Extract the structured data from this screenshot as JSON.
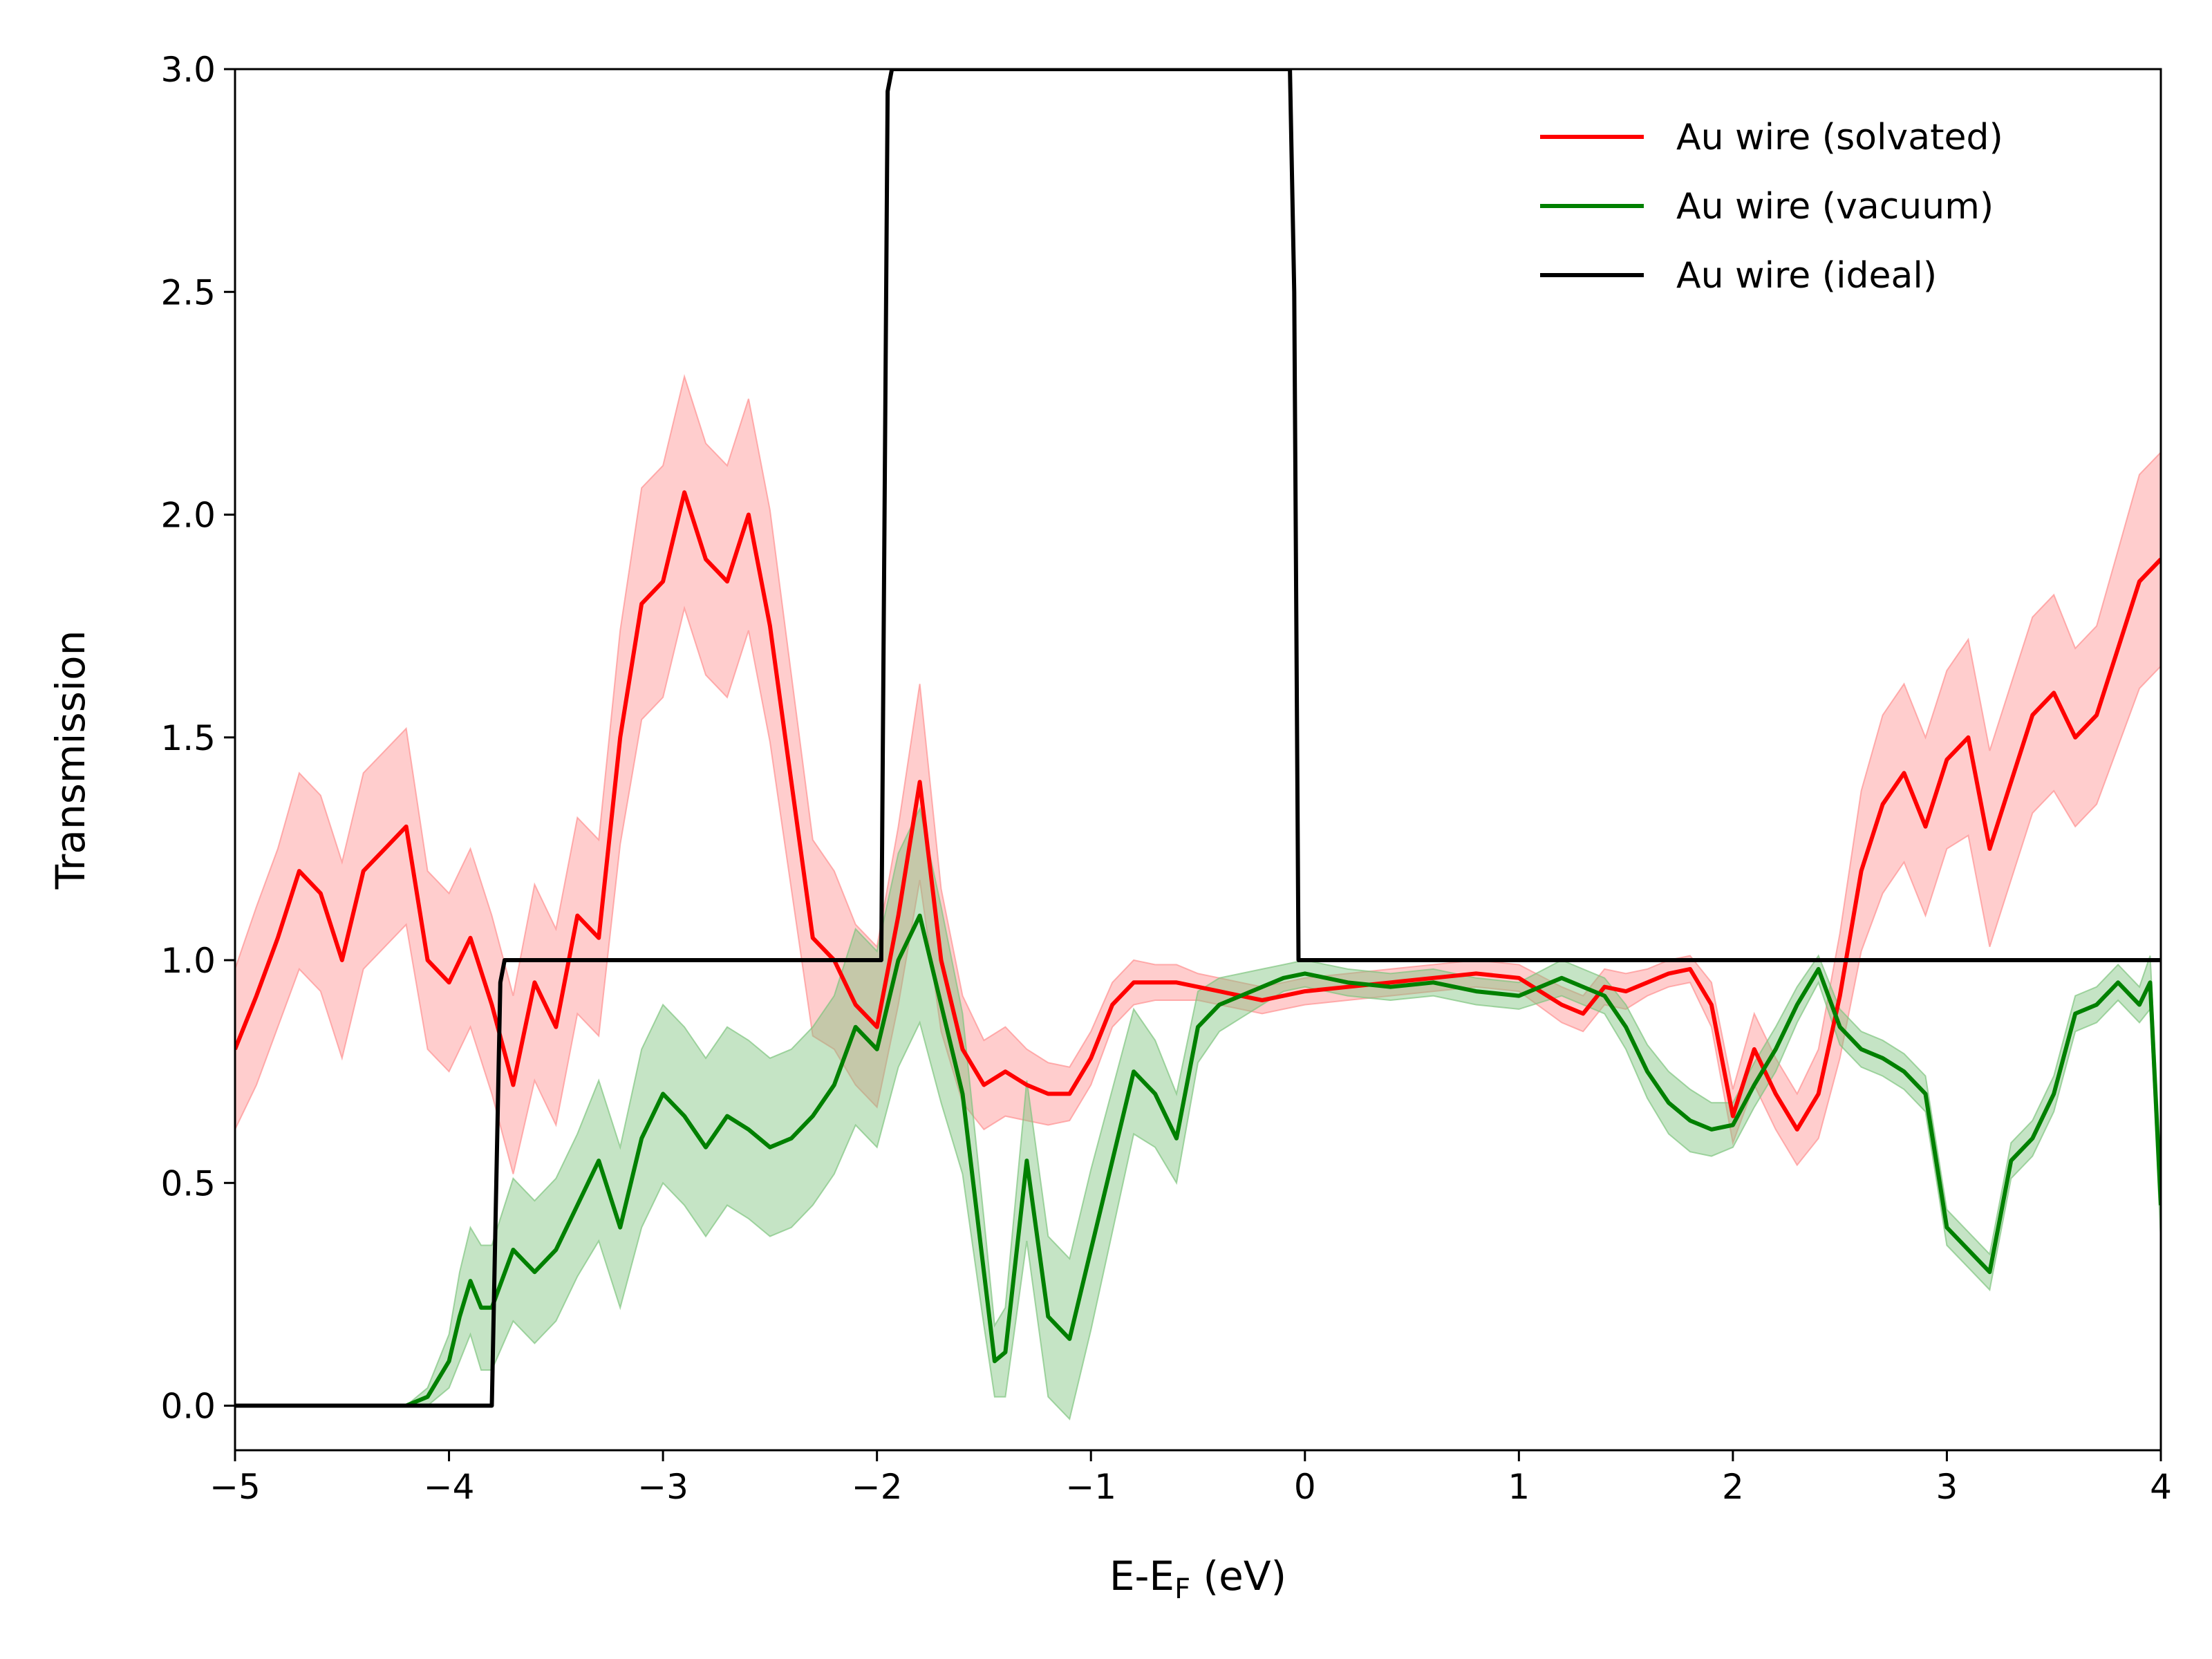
{
  "chart_data": {
    "type": "line",
    "title": "",
    "xlabel": "E-E",
    "xlabel_sub": "F",
    "xlabel_unit": " (eV)",
    "ylabel": "Transmission",
    "xlim": [
      -5,
      4
    ],
    "ylim": [
      -0.1,
      3.0
    ],
    "x_ticks": [
      -5,
      -4,
      -3,
      -2,
      -1,
      0,
      1,
      2,
      3,
      4
    ],
    "x_tick_labels": [
      "−5",
      "−4",
      "−3",
      "−2",
      "−1",
      "0",
      "1",
      "2",
      "3",
      "4"
    ],
    "y_ticks": [
      0.0,
      0.5,
      1.0,
      1.5,
      2.0,
      2.5,
      3.0
    ],
    "y_tick_labels": [
      "0.0",
      "0.5",
      "1.0",
      "1.5",
      "2.0",
      "2.5",
      "3.0"
    ],
    "grid": false,
    "legend_position": "top-right",
    "series": [
      {
        "name": "Au wire (solvated)",
        "color": "#ff0000",
        "band_color": "#ff9090",
        "x": [
          -5.0,
          -4.9,
          -4.8,
          -4.7,
          -4.6,
          -4.5,
          -4.4,
          -4.3,
          -4.2,
          -4.1,
          -4.0,
          -3.9,
          -3.8,
          -3.7,
          -3.6,
          -3.5,
          -3.4,
          -3.3,
          -3.2,
          -3.1,
          -3.0,
          -2.9,
          -2.8,
          -2.7,
          -2.6,
          -2.5,
          -2.4,
          -2.3,
          -2.2,
          -2.1,
          -2.0,
          -1.9,
          -1.8,
          -1.7,
          -1.6,
          -1.5,
          -1.4,
          -1.3,
          -1.2,
          -1.1,
          -1.0,
          -0.9,
          -0.8,
          -0.7,
          -0.6,
          -0.5,
          -0.4,
          -0.3,
          -0.2,
          -0.1,
          0.0,
          0.2,
          0.4,
          0.6,
          0.8,
          1.0,
          1.2,
          1.3,
          1.4,
          1.5,
          1.6,
          1.7,
          1.8,
          1.9,
          2.0,
          2.1,
          2.2,
          2.3,
          2.4,
          2.5,
          2.6,
          2.7,
          2.8,
          2.9,
          3.0,
          3.1,
          3.2,
          3.3,
          3.4,
          3.5,
          3.6,
          3.7,
          3.8,
          3.9,
          4.0
        ],
        "y": [
          0.8,
          0.92,
          1.05,
          1.2,
          1.15,
          1.0,
          1.2,
          1.25,
          1.3,
          1.0,
          0.95,
          1.05,
          0.9,
          0.72,
          0.95,
          0.85,
          1.1,
          1.05,
          1.5,
          1.8,
          1.85,
          2.05,
          1.9,
          1.85,
          2.0,
          1.75,
          1.4,
          1.05,
          1.0,
          0.9,
          0.85,
          1.1,
          1.4,
          1.0,
          0.8,
          0.72,
          0.75,
          0.72,
          0.7,
          0.7,
          0.78,
          0.9,
          0.95,
          0.95,
          0.95,
          0.94,
          0.93,
          0.92,
          0.91,
          0.92,
          0.93,
          0.94,
          0.95,
          0.96,
          0.97,
          0.96,
          0.9,
          0.88,
          0.94,
          0.93,
          0.95,
          0.97,
          0.98,
          0.9,
          0.65,
          0.8,
          0.7,
          0.62,
          0.7,
          0.92,
          1.2,
          1.35,
          1.42,
          1.3,
          1.45,
          1.5,
          1.25,
          1.4,
          1.55,
          1.6,
          1.5,
          1.55,
          1.7,
          1.85,
          1.9
        ],
        "band": [
          0.18,
          0.2,
          0.2,
          0.22,
          0.22,
          0.22,
          0.22,
          0.22,
          0.22,
          0.2,
          0.2,
          0.2,
          0.2,
          0.2,
          0.22,
          0.22,
          0.22,
          0.22,
          0.24,
          0.26,
          0.26,
          0.26,
          0.26,
          0.26,
          0.26,
          0.26,
          0.24,
          0.22,
          0.2,
          0.18,
          0.18,
          0.2,
          0.22,
          0.16,
          0.12,
          0.1,
          0.1,
          0.08,
          0.07,
          0.06,
          0.06,
          0.05,
          0.05,
          0.04,
          0.04,
          0.03,
          0.03,
          0.03,
          0.03,
          0.03,
          0.03,
          0.03,
          0.03,
          0.03,
          0.03,
          0.03,
          0.04,
          0.04,
          0.04,
          0.04,
          0.03,
          0.03,
          0.03,
          0.05,
          0.06,
          0.08,
          0.08,
          0.08,
          0.1,
          0.14,
          0.18,
          0.2,
          0.2,
          0.2,
          0.2,
          0.22,
          0.22,
          0.22,
          0.22,
          0.22,
          0.2,
          0.2,
          0.22,
          0.24,
          0.24
        ]
      },
      {
        "name": "Au wire (vacuum)",
        "color": "#008000",
        "band_color": "#7fc47f",
        "x": [
          -5.0,
          -4.8,
          -4.6,
          -4.4,
          -4.2,
          -4.1,
          -4.0,
          -3.95,
          -3.9,
          -3.85,
          -3.8,
          -3.7,
          -3.6,
          -3.5,
          -3.4,
          -3.3,
          -3.2,
          -3.1,
          -3.0,
          -2.9,
          -2.8,
          -2.7,
          -2.6,
          -2.5,
          -2.4,
          -2.3,
          -2.2,
          -2.1,
          -2.0,
          -1.9,
          -1.8,
          -1.7,
          -1.6,
          -1.5,
          -1.45,
          -1.4,
          -1.3,
          -1.2,
          -1.1,
          -1.0,
          -0.9,
          -0.8,
          -0.7,
          -0.6,
          -0.5,
          -0.4,
          -0.3,
          -0.2,
          -0.1,
          0.0,
          0.2,
          0.4,
          0.6,
          0.8,
          1.0,
          1.2,
          1.4,
          1.5,
          1.6,
          1.7,
          1.8,
          1.9,
          2.0,
          2.1,
          2.2,
          2.3,
          2.4,
          2.5,
          2.6,
          2.7,
          2.8,
          2.9,
          3.0,
          3.1,
          3.2,
          3.3,
          3.4,
          3.5,
          3.6,
          3.7,
          3.8,
          3.9,
          3.95,
          4.0
        ],
        "y": [
          0.0,
          0.0,
          0.0,
          0.0,
          0.0,
          0.02,
          0.1,
          0.2,
          0.28,
          0.22,
          0.22,
          0.35,
          0.3,
          0.35,
          0.45,
          0.55,
          0.4,
          0.6,
          0.7,
          0.65,
          0.58,
          0.65,
          0.62,
          0.58,
          0.6,
          0.65,
          0.72,
          0.85,
          0.8,
          1.0,
          1.1,
          0.9,
          0.7,
          0.3,
          0.1,
          0.12,
          0.55,
          0.2,
          0.15,
          0.35,
          0.55,
          0.75,
          0.7,
          0.6,
          0.85,
          0.9,
          0.92,
          0.94,
          0.96,
          0.97,
          0.95,
          0.94,
          0.95,
          0.93,
          0.92,
          0.96,
          0.92,
          0.85,
          0.75,
          0.68,
          0.64,
          0.62,
          0.63,
          0.72,
          0.8,
          0.9,
          0.98,
          0.85,
          0.8,
          0.78,
          0.75,
          0.7,
          0.4,
          0.35,
          0.3,
          0.55,
          0.6,
          0.7,
          0.88,
          0.9,
          0.95,
          0.9,
          0.95,
          0.45
        ],
        "band": [
          0.0,
          0.0,
          0.0,
          0.0,
          0.0,
          0.02,
          0.06,
          0.1,
          0.12,
          0.14,
          0.14,
          0.16,
          0.16,
          0.16,
          0.16,
          0.18,
          0.18,
          0.2,
          0.2,
          0.2,
          0.2,
          0.2,
          0.2,
          0.2,
          0.2,
          0.2,
          0.2,
          0.22,
          0.22,
          0.24,
          0.24,
          0.22,
          0.18,
          0.12,
          0.08,
          0.1,
          0.18,
          0.18,
          0.18,
          0.18,
          0.16,
          0.14,
          0.12,
          0.1,
          0.08,
          0.06,
          0.05,
          0.04,
          0.03,
          0.03,
          0.03,
          0.03,
          0.03,
          0.03,
          0.03,
          0.04,
          0.04,
          0.05,
          0.06,
          0.07,
          0.07,
          0.06,
          0.05,
          0.05,
          0.05,
          0.04,
          0.03,
          0.04,
          0.04,
          0.04,
          0.04,
          0.04,
          0.04,
          0.04,
          0.04,
          0.04,
          0.04,
          0.04,
          0.04,
          0.04,
          0.04,
          0.04,
          0.06,
          0.08
        ]
      },
      {
        "name": "Au wire (ideal)",
        "color": "#000000",
        "x": [
          -5.0,
          -3.8,
          -3.76,
          -3.74,
          -1.98,
          -1.95,
          -1.93,
          -0.07,
          -0.05,
          -0.03,
          4.0
        ],
        "y": [
          0.0,
          0.0,
          0.95,
          1.0,
          1.0,
          2.95,
          3.0,
          3.0,
          2.5,
          1.0,
          1.0
        ]
      }
    ]
  }
}
